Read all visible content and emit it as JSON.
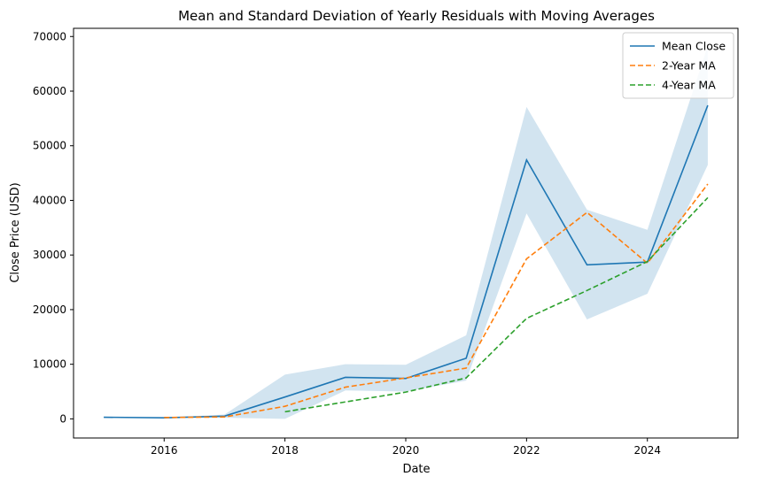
{
  "chart_data": {
    "type": "line",
    "title": "Mean and Standard Deviation of Yearly Residuals with Moving Averages",
    "xlabel": "Date",
    "ylabel": "Close Price (USD)",
    "xlim": [
      2014.5,
      2025.5
    ],
    "ylim": [
      -3500,
      71500
    ],
    "x_ticks": [
      2016,
      2018,
      2020,
      2022,
      2024
    ],
    "y_ticks": [
      0,
      10000,
      20000,
      30000,
      40000,
      50000,
      60000,
      70000
    ],
    "legend": "top-right",
    "grid": false,
    "x": [
      2015,
      2016,
      2017,
      2018,
      2019,
      2020,
      2021,
      2022,
      2023,
      2024,
      2025
    ],
    "series": [
      {
        "name": "Mean Close",
        "style": "solid",
        "color": "#1f77b4",
        "values": [
          300,
          200,
          500,
          4000,
          7600,
          7400,
          11100,
          47400,
          28200,
          28700,
          57400
        ]
      },
      {
        "name": "2-Year MA",
        "style": "dashed",
        "color": "#ff7f0e",
        "values": [
          null,
          250,
          350,
          2300,
          5800,
          7500,
          9300,
          29300,
          37800,
          28500,
          43000
        ]
      },
      {
        "name": "4-Year MA",
        "style": "dashed",
        "color": "#2ca02c",
        "values": [
          null,
          null,
          null,
          1300,
          3100,
          4900,
          7500,
          18400,
          23500,
          28800,
          40500
        ]
      }
    ],
    "band": {
      "color": "#1f77b4",
      "lower": [
        300,
        200,
        200,
        0,
        5200,
        5000,
        7000,
        37600,
        18200,
        22900,
        46500
      ],
      "upper": [
        300,
        200,
        800,
        8100,
        10000,
        9900,
        15300,
        57100,
        38300,
        34600,
        68300
      ]
    }
  }
}
